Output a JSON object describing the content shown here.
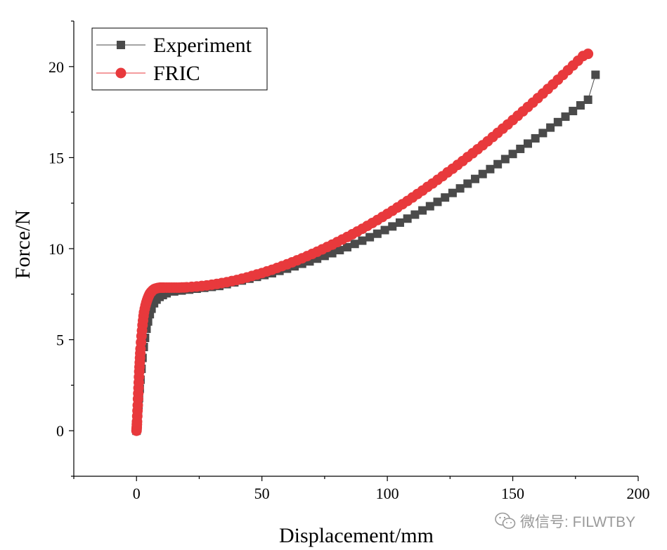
{
  "chart_data": {
    "type": "scatter",
    "xlabel": "Displacement/mm",
    "ylabel": "Force/N",
    "xlim": [
      -25,
      200
    ],
    "ylim": [
      -2.5,
      22.5
    ],
    "xticks": [
      0,
      50,
      100,
      150,
      200
    ],
    "yticks": [
      0,
      5,
      10,
      15,
      20
    ],
    "grid": false,
    "legend_position": "top-left",
    "series": [
      {
        "name": "Experiment",
        "marker": "square",
        "color": "#4a4a4a",
        "x": [
          0,
          0.2,
          0.4,
          0.6,
          0.8,
          1.0,
          1.3,
          1.6,
          2.0,
          2.4,
          2.9,
          3.4,
          4.0,
          4.6,
          5.3,
          6.0,
          7.0,
          8.0,
          9.2,
          10.5,
          12,
          15,
          18,
          21,
          24,
          27,
          30,
          33,
          36,
          39,
          42,
          45,
          48,
          51,
          54,
          57,
          60,
          63,
          66,
          69,
          72,
          75,
          78,
          81,
          84,
          87,
          90,
          93,
          96,
          99,
          102,
          105,
          108,
          111,
          114,
          117,
          120,
          123,
          126,
          129,
          132,
          135,
          138,
          141,
          144,
          147,
          150,
          153,
          156,
          159,
          162,
          165,
          168,
          171,
          174,
          177,
          180,
          183
        ],
        "y": [
          0,
          0.3,
          0.6,
          1.0,
          1.4,
          1.8,
          2.3,
          2.8,
          3.4,
          4.0,
          4.6,
          5.1,
          5.6,
          6.0,
          6.4,
          6.7,
          7.0,
          7.2,
          7.35,
          7.45,
          7.55,
          7.65,
          7.7,
          7.75,
          7.8,
          7.85,
          7.9,
          7.95,
          8.05,
          8.15,
          8.25,
          8.35,
          8.45,
          8.55,
          8.65,
          8.78,
          8.9,
          9.03,
          9.17,
          9.3,
          9.45,
          9.6,
          9.75,
          9.92,
          10.08,
          10.26,
          10.44,
          10.63,
          10.82,
          11.02,
          11.22,
          11.43,
          11.65,
          11.87,
          12.1,
          12.33,
          12.57,
          12.81,
          13.06,
          13.31,
          13.57,
          13.83,
          14.1,
          14.37,
          14.64,
          14.92,
          15.2,
          15.48,
          15.77,
          16.06,
          16.35,
          16.65,
          16.95,
          17.25,
          17.56,
          17.87,
          18.18,
          19.55
        ]
      },
      {
        "name": "FRIC",
        "marker": "circle",
        "color": "#e8393c",
        "x": [
          0,
          0.05,
          0.1,
          0.15,
          0.2,
          0.3,
          0.4,
          0.5,
          0.6,
          0.7,
          0.8,
          0.9,
          1.0,
          1.1,
          1.2,
          1.3,
          1.4,
          1.5,
          1.6,
          1.8,
          2.0,
          2.2,
          2.4,
          2.6,
          2.8,
          3.0,
          3.3,
          3.6,
          3.9,
          4.2,
          4.5,
          4.8,
          5.1,
          5.4,
          5.8,
          6.2,
          6.6,
          7.0,
          7.5,
          8.0,
          8.5,
          9.0,
          9.5,
          10,
          10.5,
          11,
          12,
          13,
          14,
          15,
          16,
          17,
          18,
          19,
          20,
          22,
          24,
          26,
          28,
          30,
          32,
          34,
          36,
          38,
          40,
          42,
          44,
          46,
          48,
          50,
          52,
          54,
          56,
          58,
          60,
          62,
          64,
          66,
          68,
          70,
          72,
          74,
          76,
          78,
          80,
          82,
          84,
          86,
          88,
          90,
          92,
          94,
          96,
          98,
          100,
          102,
          104,
          106,
          108,
          110,
          112,
          114,
          116,
          118,
          120,
          122,
          124,
          126,
          128,
          130,
          132,
          134,
          136,
          138,
          140,
          142,
          144,
          146,
          148,
          150,
          152,
          154,
          156,
          158,
          160,
          162,
          164,
          166,
          168,
          170,
          172,
          174,
          176,
          178,
          180
        ],
        "y": [
          0,
          0.1,
          0.2,
          0.35,
          0.5,
          0.8,
          1.1,
          1.4,
          1.75,
          2.05,
          2.35,
          2.65,
          2.95,
          3.25,
          3.5,
          3.75,
          4.0,
          4.25,
          4.5,
          4.85,
          5.2,
          5.5,
          5.8,
          6.05,
          6.3,
          6.5,
          6.7,
          6.88,
          7.03,
          7.16,
          7.28,
          7.38,
          7.47,
          7.55,
          7.62,
          7.68,
          7.73,
          7.77,
          7.8,
          7.82,
          7.84,
          7.85,
          7.86,
          7.86,
          7.86,
          7.86,
          7.86,
          7.86,
          7.86,
          7.86,
          7.86,
          7.86,
          7.87,
          7.87,
          7.88,
          7.9,
          7.92,
          7.95,
          7.98,
          8.02,
          8.06,
          8.11,
          8.16,
          8.22,
          8.28,
          8.35,
          8.42,
          8.5,
          8.58,
          8.66,
          8.75,
          8.84,
          8.94,
          9.04,
          9.14,
          9.25,
          9.36,
          9.47,
          9.59,
          9.71,
          9.83,
          9.96,
          10.09,
          10.22,
          10.36,
          10.5,
          10.64,
          10.79,
          10.94,
          11.09,
          11.25,
          11.41,
          11.57,
          11.74,
          11.91,
          12.08,
          12.26,
          12.44,
          12.62,
          12.81,
          13.0,
          13.19,
          13.39,
          13.58,
          13.78,
          13.98,
          14.19,
          14.39,
          14.6,
          14.81,
          15.03,
          15.24,
          15.46,
          15.68,
          15.9,
          16.13,
          16.36,
          16.59,
          16.82,
          17.06,
          17.3,
          17.54,
          17.78,
          18.02,
          18.27,
          18.52,
          18.77,
          19.02,
          19.28,
          19.54,
          19.8,
          20.06,
          20.32,
          20.58,
          20.7
        ]
      }
    ]
  },
  "watermark": {
    "icon": "wechat-icon",
    "text": "微信号: FILWTBY"
  }
}
